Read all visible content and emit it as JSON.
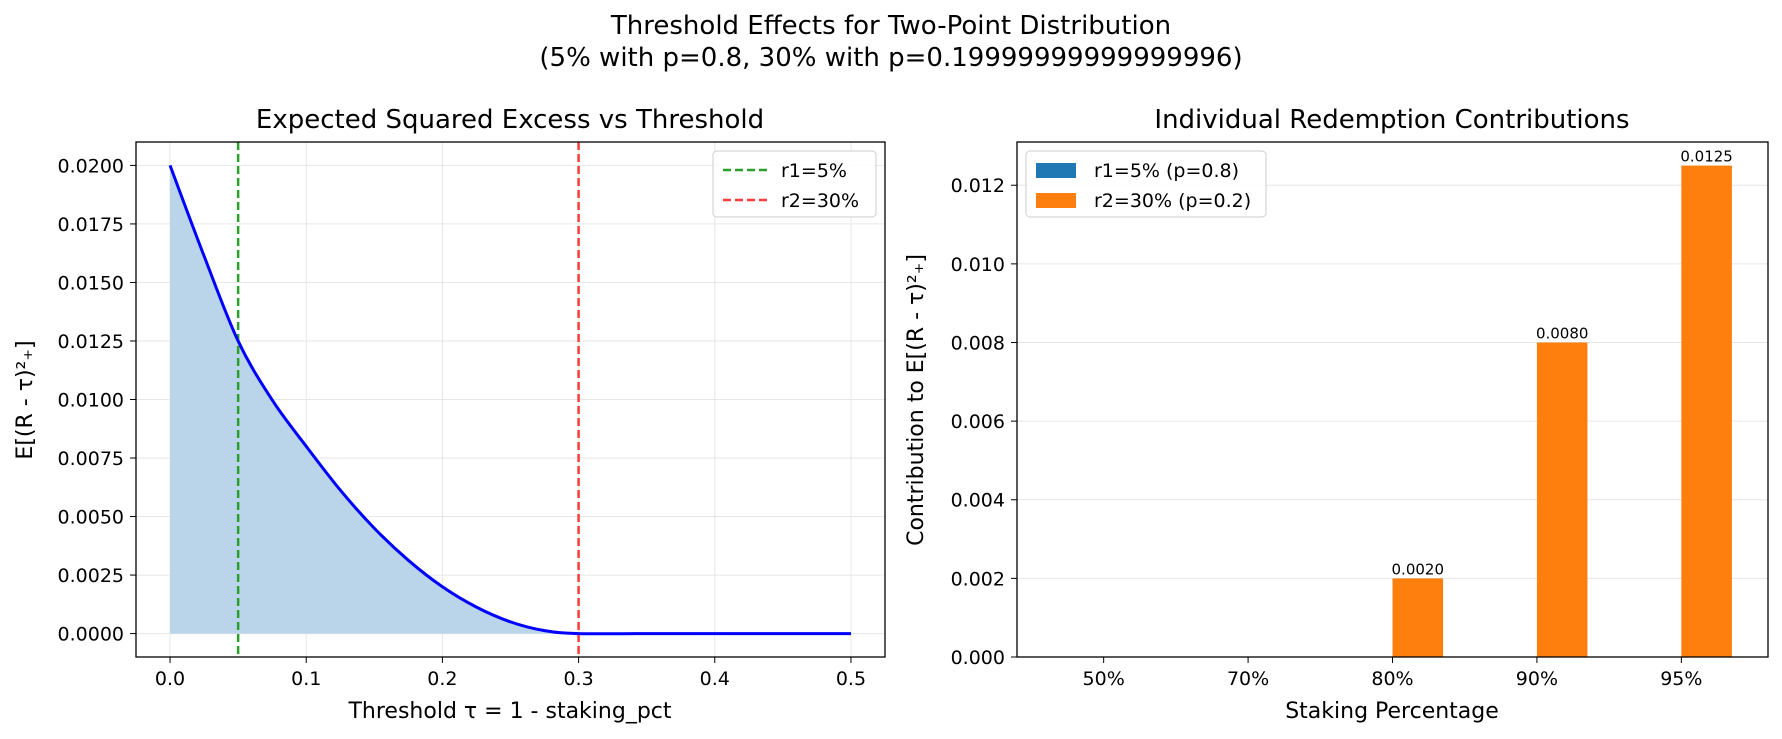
{
  "figure": {
    "suptitle_line1": "Threshold Effects for Two-Point Distribution",
    "suptitle_line2": "(5% with p=0.8, 30% with p=0.19999999999999996)"
  },
  "chart_data": [
    {
      "type": "line",
      "title": "Expected Squared Excess vs Threshold",
      "xlabel": "Threshold τ = 1 - staking_pct",
      "ylabel": "E[(R - τ)²₊]",
      "xlim": [
        -0.025,
        0.525
      ],
      "ylim": [
        -0.001,
        0.021
      ],
      "xticks": [
        0.0,
        0.1,
        0.2,
        0.3,
        0.4,
        0.5
      ],
      "xtick_labels": [
        "0.0",
        "0.1",
        "0.2",
        "0.3",
        "0.4",
        "0.5"
      ],
      "yticks": [
        0.0,
        0.0025,
        0.005,
        0.0075,
        0.01,
        0.0125,
        0.015,
        0.0175,
        0.02
      ],
      "ytick_labels": [
        "0.0000",
        "0.0025",
        "0.0050",
        "0.0075",
        "0.0100",
        "0.0125",
        "0.0150",
        "0.0175",
        "0.0200"
      ],
      "grid": true,
      "legend_position": "upper right",
      "series": [
        {
          "kind": "curve",
          "color": "#0000ff",
          "fill_color": "#bad4ea",
          "x": [
            0.0,
            0.025,
            0.05,
            0.075,
            0.1,
            0.125,
            0.15,
            0.175,
            0.2,
            0.225,
            0.25,
            0.275,
            0.3,
            0.35,
            0.4,
            0.45,
            0.5
          ],
          "y": [
            0.02,
            0.01613,
            0.0125,
            0.00998,
            0.008,
            0.00613,
            0.0045,
            0.00313,
            0.002,
            0.00113,
            0.0005,
            0.000125,
            0.0,
            0.0,
            0.0,
            0.0,
            0.0
          ]
        },
        {
          "kind": "vline",
          "name": "r1=5%",
          "x": 0.05,
          "color": "#2ca02c"
        },
        {
          "kind": "vline",
          "name": "r2=30%",
          "x": 0.3,
          "color": "#ff3b3b"
        }
      ]
    },
    {
      "type": "bar",
      "title": "Individual Redemption Contributions",
      "xlabel": "Staking Percentage",
      "ylabel": "Contribution to E[(R - τ)²₊]",
      "categories": [
        "50%",
        "70%",
        "80%",
        "90%",
        "95%"
      ],
      "ylim": [
        0,
        0.0131
      ],
      "yticks": [
        0.0,
        0.002,
        0.004,
        0.006,
        0.008,
        0.01,
        0.012
      ],
      "ytick_labels": [
        "0.000",
        "0.002",
        "0.004",
        "0.006",
        "0.008",
        "0.010",
        "0.012"
      ],
      "grid": true,
      "legend_position": "upper left",
      "series": [
        {
          "name": "r1=5% (p=0.8)",
          "color": "#1f77b4",
          "values": [
            0,
            0,
            0,
            0,
            0
          ],
          "data_labels": [
            "",
            "",
            "",
            "",
            ""
          ]
        },
        {
          "name": "r2=30% (p=0.2)",
          "color": "#ff7f0e",
          "values": [
            0,
            0,
            0.002,
            0.008,
            0.0125
          ],
          "data_labels": [
            "",
            "",
            "0.0020",
            "0.0080",
            "0.0125"
          ]
        }
      ]
    }
  ]
}
